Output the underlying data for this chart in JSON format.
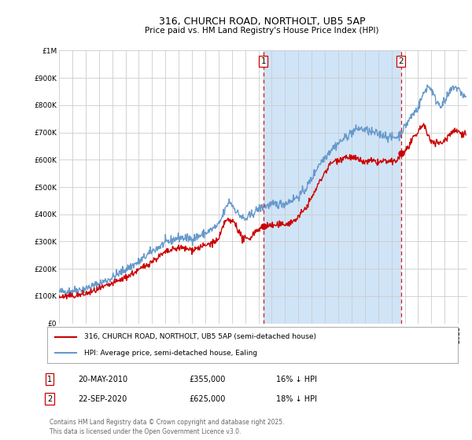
{
  "title": "316, CHURCH ROAD, NORTHOLT, UB5 5AP",
  "subtitle": "Price paid vs. HM Land Registry's House Price Index (HPI)",
  "ylim": [
    0,
    1000000
  ],
  "yticks": [
    0,
    100000,
    200000,
    300000,
    400000,
    500000,
    600000,
    700000,
    800000,
    900000,
    1000000
  ],
  "xlim_start": 1995.0,
  "xlim_end": 2025.7,
  "hpi_color": "#6699cc",
  "price_color": "#cc0000",
  "dashed_color": "#cc0000",
  "shade_color": "#d0e4f7",
  "legend_label_price": "316, CHURCH ROAD, NORTHOLT, UB5 5AP (semi-detached house)",
  "legend_label_hpi": "HPI: Average price, semi-detached house, Ealing",
  "sale1_date": 2010.37,
  "sale1_price": 355000,
  "sale2_date": 2020.72,
  "sale2_price": 625000,
  "footer": "Contains HM Land Registry data © Crown copyright and database right 2025.\nThis data is licensed under the Open Government Licence v3.0.",
  "plot_bg": "#ffffff",
  "fig_bg": "#ffffff"
}
